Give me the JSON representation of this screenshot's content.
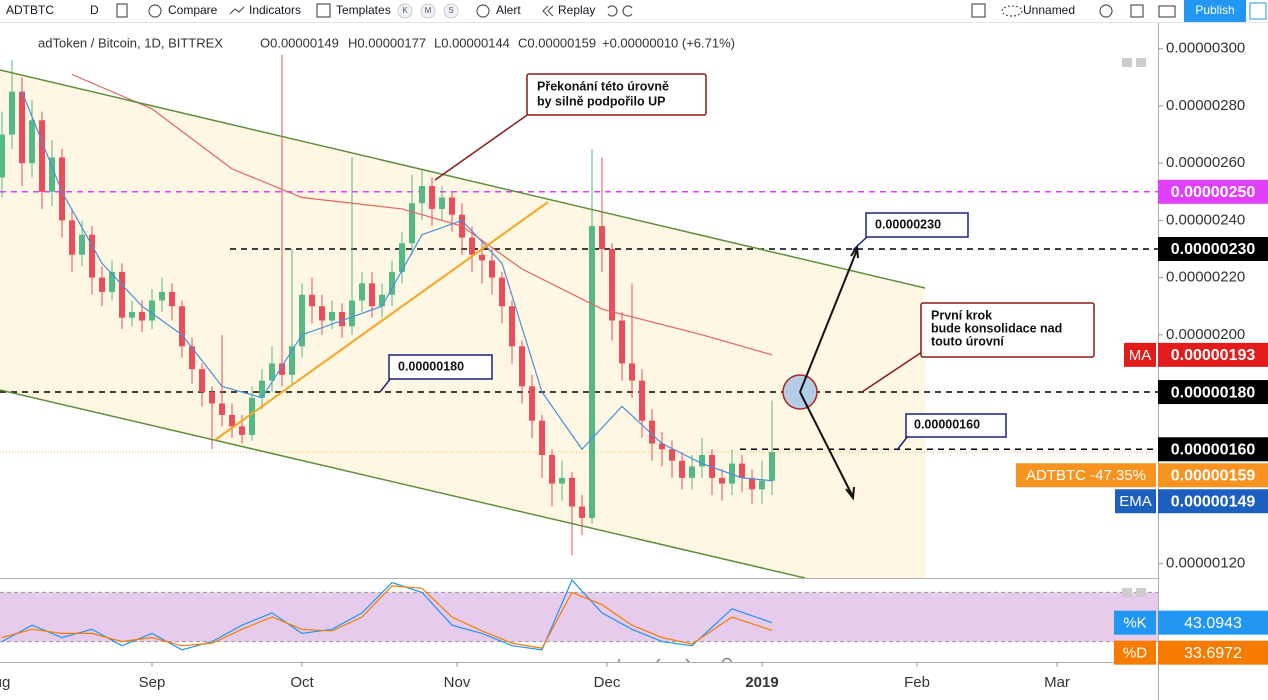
{
  "toolbar": {
    "symbol": "ADTBTC",
    "interval": "D",
    "compare": "Compare",
    "indicators": "Indicators",
    "templates": "Templates",
    "badges": [
      "K",
      "M",
      "S"
    ],
    "alert": "Alert",
    "replay": "Replay",
    "layout": "Unnamed",
    "publish": "Publish"
  },
  "chart_data": [
    {
      "type": "candlestick",
      "title": "adToken / Bitcoin, 1D, BITTREX",
      "legend_text": [
        "O0.00000149",
        "H0.00000177",
        "L0.00000144",
        "C0.00000159",
        "+0.00000010 (+6.71%)"
      ],
      "xlim": [
        0.6,
        232.2
      ],
      "xticks": [
        {
          "value": 0,
          "label": "Aug"
        },
        {
          "value": 31,
          "label": "Sep"
        },
        {
          "value": 61,
          "label": "Oct"
        },
        {
          "value": 92,
          "label": "Nov"
        },
        {
          "value": 122,
          "label": "Dec"
        },
        {
          "value": 153,
          "label": "2019"
        },
        {
          "value": 184,
          "label": "Feb"
        },
        {
          "value": 212,
          "label": "Mar"
        }
      ],
      "ylim": [
        1.15e-06,
        3.09e-06
      ],
      "yticks": [
        {
          "value": 3e-06,
          "label": "0.00000300"
        },
        {
          "value": 2.8e-06,
          "label": "0.00000280"
        },
        {
          "value": 2.6e-06,
          "label": "0.00000260"
        },
        {
          "value": 2.4e-06,
          "label": "0.00000240"
        },
        {
          "value": 2.2e-06,
          "label": "0.00000220"
        },
        {
          "value": 2e-06,
          "label": "0.00000200"
        },
        {
          "value": 1.2e-06,
          "label": "0.00000120"
        }
      ],
      "grid": false,
      "up_color": "#53b987",
      "down_color": "#eb4d5c",
      "series": [
        {
          "x": [
            1,
            3,
            5,
            7,
            9,
            11,
            13,
            15,
            17,
            19,
            21,
            23,
            25,
            27,
            29,
            31,
            33,
            35,
            37,
            39,
            41,
            43,
            45,
            47,
            49,
            51,
            53,
            55,
            57,
            59,
            61,
            63,
            65,
            67,
            69,
            71,
            73,
            75,
            77,
            79,
            81,
            83,
            85,
            87,
            89,
            91,
            93,
            95,
            97,
            99,
            101,
            103,
            105,
            107,
            109,
            111,
            113,
            115,
            117,
            119,
            121,
            123,
            125,
            127,
            129,
            131,
            133,
            135,
            137,
            139,
            141,
            143,
            145,
            147,
            149,
            151,
            153,
            155
          ],
          "ohlc": [
            [
              2.55e-06,
              2.78e-06,
              2.48e-06,
              2.7e-06
            ],
            [
              2.7e-06,
              2.96e-06,
              2.65e-06,
              2.85e-06
            ],
            [
              2.85e-06,
              2.9e-06,
              2.52e-06,
              2.6e-06
            ],
            [
              2.6e-06,
              2.82e-06,
              2.55e-06,
              2.75e-06
            ],
            [
              2.75e-06,
              2.78e-06,
              2.44e-06,
              2.5e-06
            ],
            [
              2.5e-06,
              2.68e-06,
              2.45e-06,
              2.62e-06
            ],
            [
              2.62e-06,
              2.65e-06,
              2.34e-06,
              2.4e-06
            ],
            [
              2.4e-06,
              2.44e-06,
              2.22e-06,
              2.28e-06
            ],
            [
              2.28e-06,
              2.4e-06,
              2.24e-06,
              2.35e-06
            ],
            [
              2.35e-06,
              2.38e-06,
              2.14e-06,
              2.2e-06
            ],
            [
              2.2e-06,
              2.24e-06,
              2.1e-06,
              2.15e-06
            ],
            [
              2.15e-06,
              2.26e-06,
              2.12e-06,
              2.22e-06
            ],
            [
              2.22e-06,
              2.25e-06,
              2.02e-06,
              2.06e-06
            ],
            [
              2.06e-06,
              2.12e-06,
              2.03e-06,
              2.08e-06
            ],
            [
              2.08e-06,
              2.12e-06,
              2.01e-06,
              2.05e-06
            ],
            [
              2.05e-06,
              2.16e-06,
              2.02e-06,
              2.12e-06
            ],
            [
              2.12e-06,
              2.2e-06,
              2.08e-06,
              2.15e-06
            ],
            [
              2.15e-06,
              2.18e-06,
              2.05e-06,
              2.1e-06
            ],
            [
              2.1e-06,
              2.12e-06,
              1.92e-06,
              1.96e-06
            ],
            [
              1.96e-06,
              1.99e-06,
              1.83e-06,
              1.88e-06
            ],
            [
              1.88e-06,
              1.9e-06,
              1.75e-06,
              1.8e-06
            ],
            [
              1.8e-06,
              1.82e-06,
              1.6e-06,
              1.76e-06
            ],
            [
              1.76e-06,
              2e-06,
              1.68e-06,
              1.72e-06
            ],
            [
              1.72e-06,
              1.76e-06,
              1.64e-06,
              1.68e-06
            ],
            [
              1.68e-06,
              1.72e-06,
              1.62e-06,
              1.65e-06
            ],
            [
              1.65e-06,
              1.82e-06,
              1.63e-06,
              1.78e-06
            ],
            [
              1.78e-06,
              1.88e-06,
              1.74e-06,
              1.84e-06
            ],
            [
              1.84e-06,
              1.96e-06,
              1.8e-06,
              1.9e-06
            ],
            [
              1.9e-06,
              2.98e-06,
              1.82e-06,
              1.86e-06
            ],
            [
              1.86e-06,
              2.3e-06,
              1.83e-06,
              1.96e-06
            ],
            [
              1.96e-06,
              2.18e-06,
              1.92e-06,
              2.14e-06
            ],
            [
              2.14e-06,
              2.2e-06,
              2.04e-06,
              2.1e-06
            ],
            [
              2.1e-06,
              2.14e-06,
              2e-06,
              2.05e-06
            ],
            [
              2.05e-06,
              2.12e-06,
              2.02e-06,
              2.08e-06
            ],
            [
              2.08e-06,
              2.11e-06,
              1.99e-06,
              2.03e-06
            ],
            [
              2.03e-06,
              2.62e-06,
              2e-06,
              2.12e-06
            ],
            [
              2.12e-06,
              2.22e-06,
              2.08e-06,
              2.18e-06
            ],
            [
              2.18e-06,
              2.22e-06,
              2.06e-06,
              2.1e-06
            ],
            [
              2.1e-06,
              2.18e-06,
              2.06e-06,
              2.14e-06
            ],
            [
              2.14e-06,
              2.26e-06,
              2.1e-06,
              2.22e-06
            ],
            [
              2.22e-06,
              2.36e-06,
              2.18e-06,
              2.32e-06
            ],
            [
              2.32e-06,
              2.56e-06,
              2.28e-06,
              2.46e-06
            ],
            [
              2.46e-06,
              2.58e-06,
              2.4e-06,
              2.52e-06
            ],
            [
              2.52e-06,
              2.55e-06,
              2.38e-06,
              2.44e-06
            ],
            [
              2.44e-06,
              2.52e-06,
              2.4e-06,
              2.48e-06
            ],
            [
              2.48e-06,
              2.5e-06,
              2.36e-06,
              2.42e-06
            ],
            [
              2.42e-06,
              2.46e-06,
              2.28e-06,
              2.34e-06
            ],
            [
              2.34e-06,
              2.38e-06,
              2.22e-06,
              2.28e-06
            ],
            [
              2.28e-06,
              2.32e-06,
              2.18e-06,
              2.26e-06
            ],
            [
              2.26e-06,
              2.3e-06,
              2.14e-06,
              2.2e-06
            ],
            [
              2.2e-06,
              2.22e-06,
              2.04e-06,
              2.1e-06
            ],
            [
              2.1e-06,
              2.12e-06,
              1.9e-06,
              1.96e-06
            ],
            [
              1.96e-06,
              1.98e-06,
              1.76e-06,
              1.82e-06
            ],
            [
              1.82e-06,
              1.86e-06,
              1.64e-06,
              1.7e-06
            ],
            [
              1.7e-06,
              1.72e-06,
              1.5e-06,
              1.58e-06
            ],
            [
              1.58e-06,
              1.6e-06,
              1.4e-06,
              1.48e-06
            ],
            [
              1.48e-06,
              1.56e-06,
              1.42e-06,
              1.5e-06
            ],
            [
              1.5e-06,
              1.52e-06,
              1.23e-06,
              1.4e-06
            ],
            [
              1.4e-06,
              1.44e-06,
              1.3e-06,
              1.36e-06
            ],
            [
              1.36e-06,
              2.65e-06,
              1.34e-06,
              2.38e-06
            ],
            [
              2.38e-06,
              2.62e-06,
              2.22e-06,
              2.3e-06
            ],
            [
              2.3e-06,
              2.32e-06,
              1.98e-06,
              2.05e-06
            ],
            [
              2.05e-06,
              2.08e-06,
              1.84e-06,
              1.9e-06
            ],
            [
              1.9e-06,
              2.18e-06,
              1.78e-06,
              1.84e-06
            ],
            [
              1.84e-06,
              1.88e-06,
              1.64e-06,
              1.7e-06
            ],
            [
              1.7e-06,
              1.74e-06,
              1.56e-06,
              1.62e-06
            ],
            [
              1.62e-06,
              1.66e-06,
              1.54e-06,
              1.6e-06
            ],
            [
              1.6e-06,
              1.63e-06,
              1.5e-06,
              1.56e-06
            ],
            [
              1.56e-06,
              1.59e-06,
              1.46e-06,
              1.5e-06
            ],
            [
              1.5e-06,
              1.58e-06,
              1.46e-06,
              1.54e-06
            ],
            [
              1.54e-06,
              1.64e-06,
              1.5e-06,
              1.58e-06
            ],
            [
              1.58e-06,
              1.6e-06,
              1.44e-06,
              1.5e-06
            ],
            [
              1.5e-06,
              1.53e-06,
              1.42e-06,
              1.48e-06
            ],
            [
              1.48e-06,
              1.6e-06,
              1.44e-06,
              1.55e-06
            ],
            [
              1.55e-06,
              1.58e-06,
              1.45e-06,
              1.5e-06
            ],
            [
              1.5e-06,
              1.53e-06,
              1.41e-06,
              1.46e-06
            ],
            [
              1.46e-06,
              1.56e-06,
              1.41e-06,
              1.49e-06
            ],
            [
              1.49e-06,
              1.77e-06,
              1.44e-06,
              1.59e-06
            ]
          ]
        },
        {
          "type": "line",
          "color": "#e06666",
          "x": [
            15,
            31,
            47,
            61,
            81,
            93,
            105,
            121,
            141,
            155
          ],
          "values": [
            2.91e-06,
            2.79e-06,
            2.58e-06,
            2.48e-06,
            2.44e-06,
            2.38e-06,
            2.23e-06,
            2.09e-06,
            2e-06,
            1.93e-06
          ]
        },
        {
          "type": "line",
          "color": "#4a90d9",
          "x": [
            5,
            13,
            21,
            29,
            37,
            45,
            53,
            61,
            69,
            77,
            85,
            93,
            101,
            109,
            117,
            125,
            133,
            141,
            149,
            155
          ],
          "values": [
            2.85e-06,
            2.5e-06,
            2.25e-06,
            2.1e-06,
            2e-06,
            1.82e-06,
            1.78e-06,
            2e-06,
            2.05e-06,
            2.1e-06,
            2.35e-06,
            2.4e-06,
            2.25e-06,
            1.8e-06,
            1.6e-06,
            1.75e-06,
            1.62e-06,
            1.55e-06,
            1.5e-06,
            1.49e-06
          ]
        }
      ],
      "levels": [
        {
          "value": 2.5e-06,
          "label": "0.00000250",
          "color": "#e040fb",
          "line": "dashed"
        },
        {
          "value": 2.3e-06,
          "label": "0.00000230",
          "color": "#000000",
          "line": "dashed"
        },
        {
          "name": "MA",
          "value": 1.93e-06,
          "label": "0.00000193",
          "color": "#e31b1b"
        },
        {
          "value": 1.8e-06,
          "label": "0.00000180",
          "color": "#000000",
          "line": "dashed"
        },
        {
          "value": 1.6e-06,
          "label": "0.00000160",
          "color": "#000000",
          "line": "dashed"
        },
        {
          "name": "ADTBTC -47.35%",
          "value": 1.59e-06,
          "label": "0.00000159",
          "color": "#f7931e",
          "line": "dotted"
        },
        {
          "name": "EMA",
          "value": 1.49e-06,
          "label": "0.00000149",
          "color": "#1c5fbf"
        }
      ],
      "annotations": [
        "Překonání této úrovně",
        "by silně podpořilo UP",
        "0.00000230",
        "0.00000180",
        "0.00000160",
        "První krok",
        "bude konsolidace nad",
        "touto úrovní"
      ]
    },
    {
      "type": "line",
      "ylim": [
        0,
        100
      ],
      "band": [
        20,
        80
      ],
      "band_color": "#e1bee7",
      "series": [
        {
          "name": "%K",
          "color": "#2196f3",
          "x": [
            1,
            7,
            13,
            19,
            25,
            31,
            37,
            43,
            49,
            55,
            61,
            67,
            73,
            79,
            85,
            91,
            97,
            103,
            109,
            115,
            121,
            127,
            133,
            139,
            147,
            155
          ],
          "values": [
            20,
            40,
            25,
            35,
            15,
            30,
            10,
            20,
            40,
            55,
            30,
            35,
            55,
            92,
            80,
            40,
            30,
            15,
            10,
            95,
            55,
            35,
            20,
            15,
            60,
            43.0943
          ]
        },
        {
          "name": "%D",
          "color": "#f57c00",
          "x": [
            1,
            7,
            13,
            19,
            25,
            31,
            37,
            43,
            49,
            55,
            61,
            67,
            73,
            79,
            85,
            91,
            97,
            103,
            109,
            115,
            121,
            127,
            133,
            139,
            147,
            155
          ],
          "values": [
            25,
            35,
            30,
            30,
            20,
            25,
            15,
            18,
            35,
            50,
            35,
            33,
            50,
            88,
            85,
            50,
            33,
            18,
            12,
            80,
            65,
            40,
            25,
            17,
            50,
            33.6972
          ]
        }
      ]
    }
  ]
}
